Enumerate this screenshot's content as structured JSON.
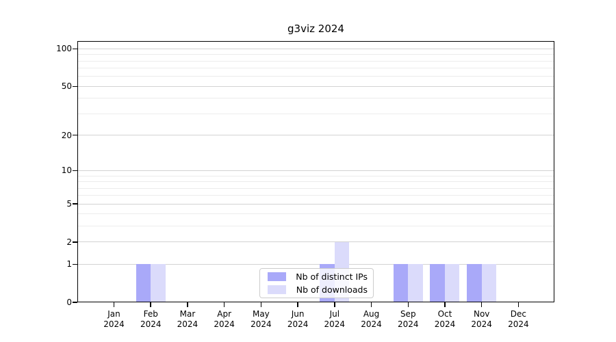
{
  "title": "g3viz 2024",
  "chart_data": {
    "type": "bar",
    "title": "g3viz 2024",
    "months": [
      "Jan",
      "Feb",
      "Mar",
      "Apr",
      "May",
      "Jun",
      "Jul",
      "Aug",
      "Sep",
      "Oct",
      "Nov",
      "Dec"
    ],
    "year": "2024",
    "categories": [
      "Jan 2024",
      "Feb 2024",
      "Mar 2024",
      "Apr 2024",
      "May 2024",
      "Jun 2024",
      "Jul 2024",
      "Aug 2024",
      "Sep 2024",
      "Oct 2024",
      "Nov 2024",
      "Dec 2024"
    ],
    "series": [
      {
        "name": "Nb of distinct IPs",
        "color": "#a9a9f9",
        "values": [
          0,
          1,
          0,
          0,
          0,
          0,
          1,
          0,
          1,
          1,
          1,
          0
        ]
      },
      {
        "name": "Nb of downloads",
        "color": "#dbdbfb",
        "values": [
          0,
          1,
          0,
          0,
          0,
          0,
          2,
          0,
          1,
          1,
          1,
          0
        ]
      }
    ],
    "yticks": [
      0,
      1,
      2,
      5,
      10,
      20,
      50,
      100
    ],
    "minor_yticks": [
      3,
      4,
      6,
      7,
      8,
      9,
      30,
      40,
      60,
      70,
      80,
      90
    ],
    "scale": "log1p",
    "ylim": [
      0,
      116
    ],
    "xlabel": "",
    "ylabel": "",
    "grid": "horizontal",
    "legend_position": "lower center"
  }
}
